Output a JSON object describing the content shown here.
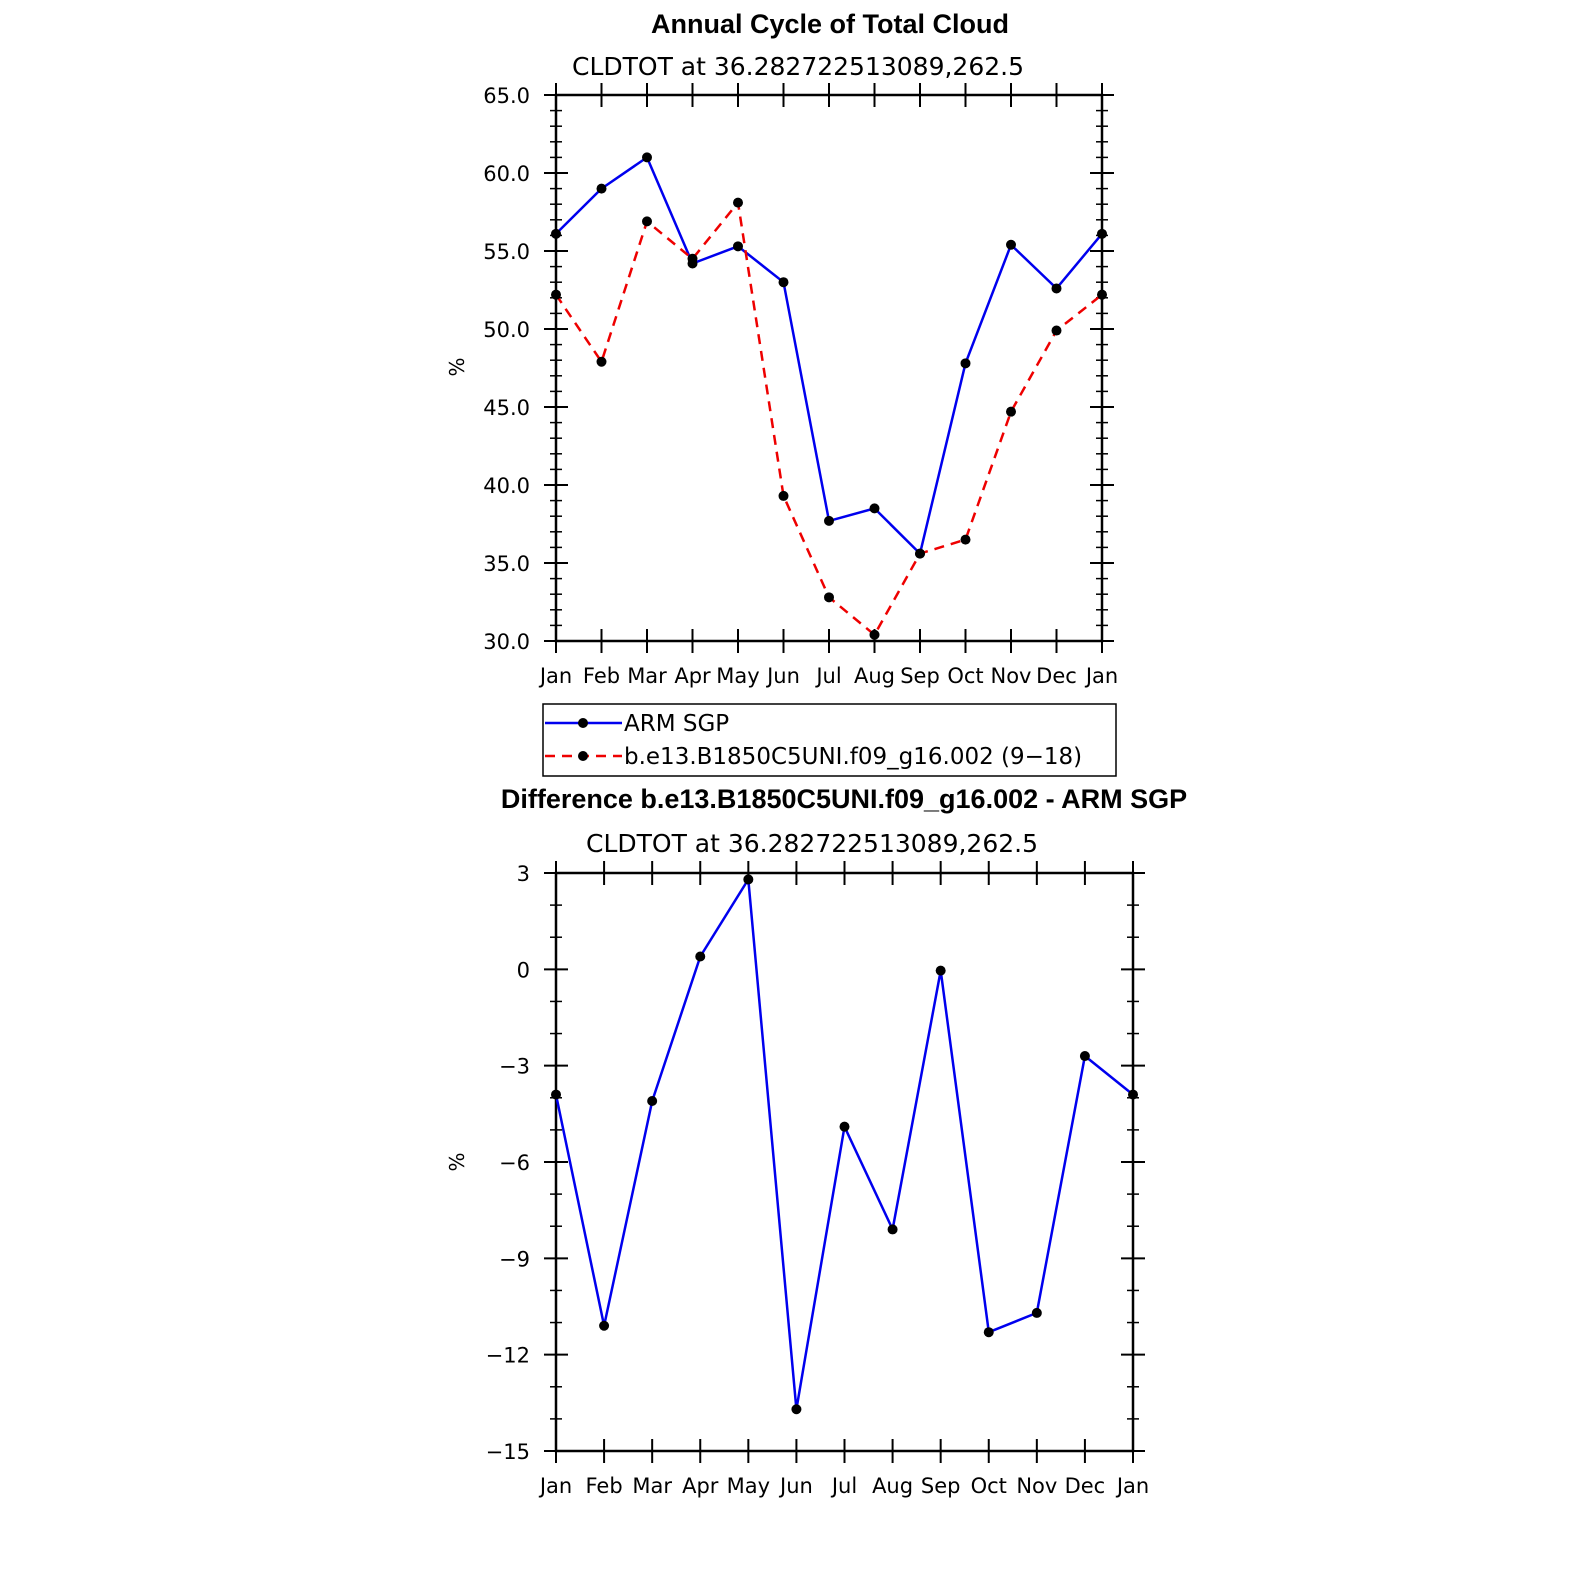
{
  "chart_data": [
    {
      "type": "line",
      "title": "Annual Cycle of Total Cloud",
      "subtitle": "CLDTOT  at  36.282722513089,262.5",
      "ylabel": "%",
      "ylim": [
        30,
        65
      ],
      "yticks": [
        "30.0",
        "35.0",
        "40.0",
        "45.0",
        "50.0",
        "55.0",
        "60.0",
        "65.0"
      ],
      "categories": [
        "Jan",
        "Feb",
        "Mar",
        "Apr",
        "May",
        "Jun",
        "Jul",
        "Aug",
        "Sep",
        "Oct",
        "Nov",
        "Dec",
        "Jan"
      ],
      "series": [
        {
          "name": "ARM  SGP",
          "color": "#0000ee",
          "dash": "solid",
          "values": [
            56.1,
            59.0,
            61.0,
            54.2,
            55.3,
            53.0,
            37.7,
            38.5,
            35.6,
            47.8,
            55.4,
            52.6,
            56.1
          ]
        },
        {
          "name": "b.e13.B1850C5UNI.f09_g16.002  (9−18)",
          "color": "#ee0000",
          "dash": "dashed",
          "values": [
            52.2,
            47.9,
            56.9,
            54.5,
            58.1,
            39.3,
            32.8,
            30.4,
            35.6,
            36.5,
            44.7,
            49.9,
            52.2
          ]
        }
      ],
      "legend": "bottom"
    },
    {
      "type": "line",
      "title": "Difference b.e13.B1850C5UNI.f09_g16.002 - ARM SGP",
      "subtitle": "CLDTOT  at  36.282722513089,262.5",
      "ylabel": "%",
      "ylim": [
        -15,
        3
      ],
      "yticks": [
        "−15",
        "−12",
        "−9",
        "−6",
        "−3",
        "0",
        "3"
      ],
      "categories": [
        "Jan",
        "Feb",
        "Mar",
        "Apr",
        "May",
        "Jun",
        "Jul",
        "Aug",
        "Sep",
        "Oct",
        "Nov",
        "Dec",
        "Jan"
      ],
      "series": [
        {
          "color": "#0000ee",
          "dash": "solid",
          "values": [
            -3.9,
            -11.1,
            -4.1,
            0.4,
            2.8,
            -13.7,
            -4.9,
            -8.1,
            -0.04,
            -11.3,
            -10.7,
            -2.7,
            -3.9
          ]
        }
      ]
    }
  ]
}
